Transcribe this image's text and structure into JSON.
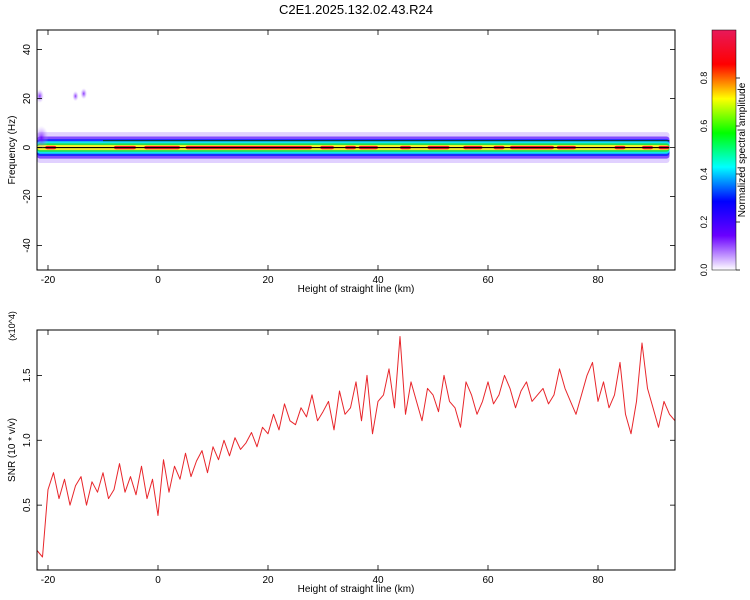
{
  "title": "C2E1.2025.132.02.43.R24",
  "colors": {
    "signal_line": "#e8262b",
    "axis": "#000000",
    "spectrogram_low": "#ffffff",
    "spectrogram_high": "#e8195a"
  },
  "chart_data": [
    {
      "id": "spectrogram",
      "type": "heatmap",
      "xlabel": "Height of straight line (km)",
      "ylabel": "Frequency (Hz)",
      "xlim": [
        -22,
        94
      ],
      "ylim": [
        -50,
        48
      ],
      "x_ticks": [
        -20,
        0,
        20,
        40,
        60,
        80
      ],
      "y_ticks": [
        -40,
        -20,
        0,
        20,
        40
      ],
      "grid": false,
      "colorbar": {
        "label": "Normalized spectral amplitude",
        "ticks": [
          "0.0",
          "0.2",
          "0.4",
          "0.6",
          "0.8"
        ],
        "range": [
          0,
          1
        ],
        "stops": [
          "#ffffff",
          "#6a00ff",
          "#0000ff",
          "#00ffff",
          "#00ff00",
          "#ffff00",
          "#ff0000",
          "#e8195a"
        ]
      },
      "band": {
        "center_frequency_hz": 0,
        "half_width_hz": 1.5,
        "x_range": [
          -22,
          93
        ]
      },
      "bursts": [
        {
          "x": -21.5,
          "y": 21,
          "amplitude": 0.15
        },
        {
          "x": -21.2,
          "y": 4,
          "amplitude": 0.4
        },
        {
          "x": -13.5,
          "y": 22,
          "amplitude": 0.08
        },
        {
          "x": -15,
          "y": 21,
          "amplitude": 0.06
        }
      ]
    },
    {
      "id": "snr",
      "type": "line",
      "xlabel": "Height of straight line (km)",
      "ylabel": "SNR (10 * v/v)",
      "y_multiplier": "(x10^4)",
      "xlim": [
        -22,
        94
      ],
      "ylim": [
        0,
        1.85
      ],
      "x_ticks": [
        -20,
        0,
        20,
        40,
        60,
        80
      ],
      "y_ticks": [
        0.5,
        1.0,
        1.5
      ],
      "y_tick_labels": [
        "0.5",
        "1.0",
        "1.5"
      ],
      "grid": false,
      "series": [
        {
          "x": [
            -22,
            -21,
            -20,
            -19,
            -18,
            -17,
            -16,
            -15,
            -14,
            -13,
            -12,
            -11,
            -10,
            -9,
            -8,
            -7,
            -6,
            -5,
            -4,
            -3,
            -2,
            -1,
            0,
            1,
            2,
            3,
            4,
            5,
            6,
            7,
            8,
            9,
            10,
            11,
            12,
            13,
            14,
            15,
            16,
            17,
            18,
            19,
            20,
            21,
            22,
            23,
            24,
            25,
            26,
            27,
            28,
            29,
            30,
            31,
            32,
            33,
            34,
            35,
            36,
            37,
            38,
            39,
            40,
            41,
            42,
            43,
            44,
            45,
            46,
            47,
            48,
            49,
            50,
            51,
            52,
            53,
            54,
            55,
            56,
            57,
            58,
            59,
            60,
            61,
            62,
            63,
            64,
            65,
            66,
            67,
            68,
            69,
            70,
            71,
            72,
            73,
            74,
            75,
            76,
            77,
            78,
            79,
            80,
            81,
            82,
            83,
            84,
            85,
            86,
            87,
            88,
            89,
            90,
            91,
            92,
            93,
            94
          ],
          "y": [
            0.15,
            0.1,
            0.62,
            0.75,
            0.55,
            0.7,
            0.5,
            0.65,
            0.72,
            0.5,
            0.68,
            0.6,
            0.75,
            0.55,
            0.62,
            0.82,
            0.6,
            0.72,
            0.58,
            0.8,
            0.55,
            0.7,
            0.42,
            0.85,
            0.6,
            0.8,
            0.7,
            0.9,
            0.72,
            0.84,
            0.92,
            0.75,
            0.95,
            0.85,
            1.0,
            0.88,
            1.02,
            0.93,
            0.98,
            1.06,
            0.95,
            1.1,
            1.05,
            1.2,
            1.08,
            1.28,
            1.15,
            1.12,
            1.25,
            1.18,
            1.35,
            1.15,
            1.22,
            1.3,
            1.08,
            1.38,
            1.2,
            1.25,
            1.45,
            1.15,
            1.5,
            1.05,
            1.3,
            1.35,
            1.55,
            1.25,
            1.8,
            1.2,
            1.45,
            1.3,
            1.15,
            1.4,
            1.35,
            1.22,
            1.5,
            1.3,
            1.25,
            1.1,
            1.45,
            1.35,
            1.2,
            1.3,
            1.45,
            1.28,
            1.35,
            1.5,
            1.4,
            1.25,
            1.38,
            1.45,
            1.3,
            1.35,
            1.4,
            1.28,
            1.35,
            1.55,
            1.4,
            1.3,
            1.2,
            1.35,
            1.5,
            1.6,
            1.3,
            1.45,
            1.25,
            1.35,
            1.6,
            1.2,
            1.05,
            1.3,
            1.75,
            1.4,
            1.25,
            1.1,
            1.3,
            1.2,
            1.15
          ]
        }
      ]
    }
  ]
}
